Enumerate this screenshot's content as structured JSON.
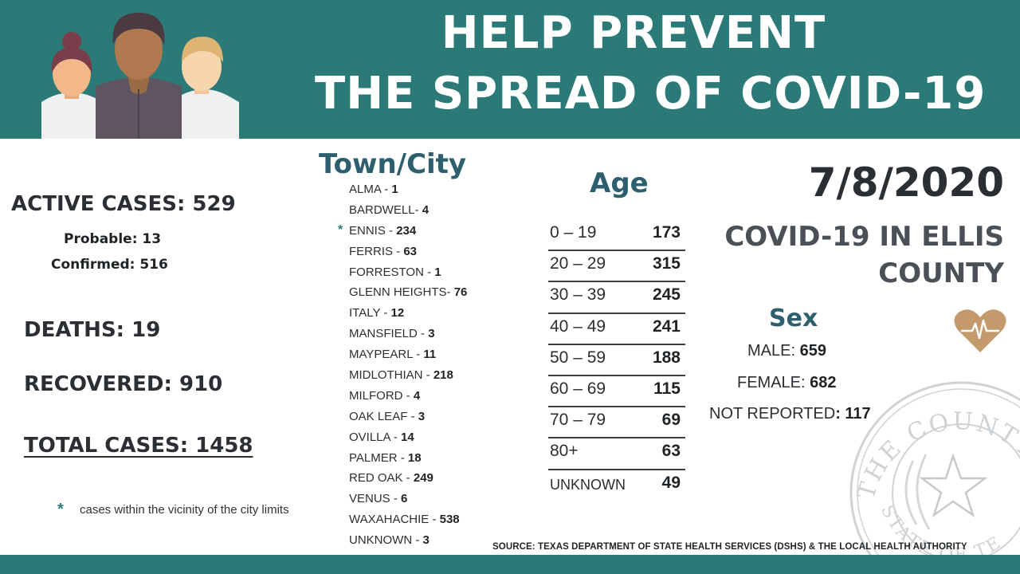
{
  "header": {
    "title_line1": "HELP PREVENT",
    "title_line2": "THE SPREAD OF COVID-19"
  },
  "summary": {
    "active_cases": "ACTIVE CASES: 529",
    "probable": "Probable: 13",
    "confirmed": "Confirmed: 516",
    "deaths": "DEATHS: 19",
    "recovered": "RECOVERED: 910",
    "total_cases": "TOTAL CASES: 1458",
    "footnote_star": "*",
    "footnote_text": "cases within the vicinity of the city limits"
  },
  "towns": {
    "heading": "Town/City",
    "items": [
      {
        "name": "ALMA - ",
        "value": "1",
        "star": ""
      },
      {
        "name": "BARDWELL- ",
        "value": "4",
        "star": ""
      },
      {
        "name": "ENNIS - ",
        "value": "234",
        "star": "*"
      },
      {
        "name": "FERRIS - ",
        "value": "63",
        "star": ""
      },
      {
        "name": "FORRESTON - ",
        "value": "1",
        "star": ""
      },
      {
        "name": "GLENN HEIGHTS- ",
        "value": "76",
        "star": ""
      },
      {
        "name": "ITALY - ",
        "value": "12",
        "star": ""
      },
      {
        "name": "MANSFIELD - ",
        "value": "3",
        "star": ""
      },
      {
        "name": "MAYPEARL - ",
        "value": "11",
        "star": ""
      },
      {
        "name": "MIDLOTHIAN - ",
        "value": "218",
        "star": ""
      },
      {
        "name": "MILFORD - ",
        "value": "4",
        "star": ""
      },
      {
        "name": "OAK LEAF - ",
        "value": "3",
        "star": ""
      },
      {
        "name": "OVILLA - ",
        "value": "14",
        "star": ""
      },
      {
        "name": "PALMER - ",
        "value": "18",
        "star": ""
      },
      {
        "name": "RED OAK - ",
        "value": "249",
        "star": ""
      },
      {
        "name": "VENUS - ",
        "value": "6",
        "star": ""
      },
      {
        "name": "WAXAHACHIE - ",
        "value": "538",
        "star": ""
      },
      {
        "name": "UNKNOWN - ",
        "value": "3",
        "star": ""
      }
    ]
  },
  "age": {
    "heading": "Age",
    "rows": [
      {
        "range": "0 – 19",
        "value": "173"
      },
      {
        "range": "20 – 29",
        "value": "315"
      },
      {
        "range": "30 – 39",
        "value": "245"
      },
      {
        "range": "40 – 49",
        "value": "241"
      },
      {
        "range": "50 – 59",
        "value": "188"
      },
      {
        "range": "60 – 69",
        "value": "115"
      },
      {
        "range": "70 – 79",
        "value": "69"
      },
      {
        "range": "80+",
        "value": "63"
      },
      {
        "range": "UNKNOWN",
        "value": "49"
      }
    ]
  },
  "right": {
    "date": "7/8/2020",
    "county_title_line1": "COVID-19 IN ELLIS",
    "county_title_line2": "COUNTY"
  },
  "sex": {
    "heading": "Sex",
    "male_label": "MALE: ",
    "male_value": "659",
    "female_label": "FEMALE: ",
    "female_value": "682",
    "not_reported_label": "NOT REPORTED",
    "not_reported_value": ": 117"
  },
  "source": "SOURCE: TEXAS DEPARTMENT OF STATE HEALTH SERVICES (DSHS) & THE LOCAL HEALTH AUTHORITY",
  "seal": {
    "text_top": "THE COUNTY OF",
    "text_bottom": "STATE OF TEXAS"
  },
  "colors": {
    "teal": "#2b7a78",
    "heading_blue": "#2e5f6e",
    "heart": "#c49a6c"
  },
  "icons": [
    "people-illustration",
    "heart-pulse-icon",
    "county-seal-icon"
  ]
}
